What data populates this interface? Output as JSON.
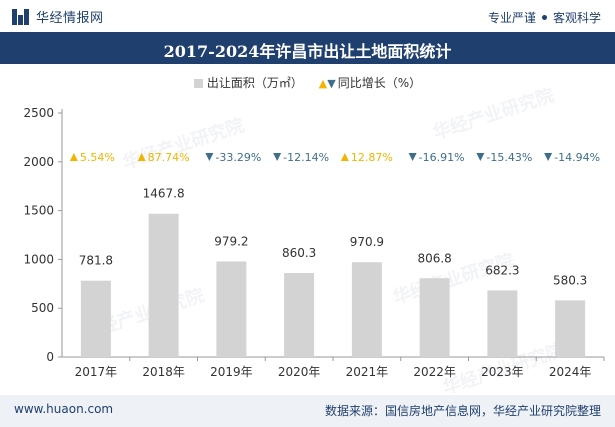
{
  "header": {
    "brand": "华经情报网",
    "tagline_left": "专业严谨",
    "tagline_right": "客观科学"
  },
  "title": "2017-2024年许昌市出让土地面积统计",
  "legend": {
    "bar_label": "出让面积（万㎡）",
    "growth_label": "同比增长（%）"
  },
  "watermark": "华经产业研究院",
  "footer": {
    "url": "www.huaon.com",
    "source": "数据来源：国信房地产信息网，华经产业研究院整理"
  },
  "colors": {
    "brand": "#1f3f6e",
    "bar": "#d3d3d3",
    "up": "#f3b300",
    "down": "#3d6e8e"
  },
  "chart_data": {
    "type": "bar",
    "categories": [
      "2017年",
      "2018年",
      "2019年",
      "2020年",
      "2021年",
      "2022年",
      "2023年",
      "2024年"
    ],
    "series": [
      {
        "name": "出让面积（万㎡）",
        "values": [
          781.8,
          1467.8,
          979.2,
          860.3,
          970.9,
          806.8,
          682.3,
          580.3
        ]
      },
      {
        "name": "同比增长（%）",
        "values": [
          5.54,
          87.74,
          -33.29,
          -12.14,
          12.87,
          -16.91,
          -15.43,
          -14.94
        ]
      }
    ],
    "value_labels": [
      "781.8",
      "1467.8",
      "979.2",
      "860.3",
      "970.9",
      "806.8",
      "682.3",
      "580.3"
    ],
    "growth_labels": [
      "5.54%",
      "87.74%",
      "-33.29%",
      "-12.14%",
      "12.87%",
      "-16.91%",
      "-15.43%",
      "-14.94%"
    ],
    "yticks": [
      "0",
      "500",
      "1000",
      "1500",
      "2000",
      "2500"
    ],
    "ylim": [
      0,
      2500
    ],
    "grid": false
  }
}
